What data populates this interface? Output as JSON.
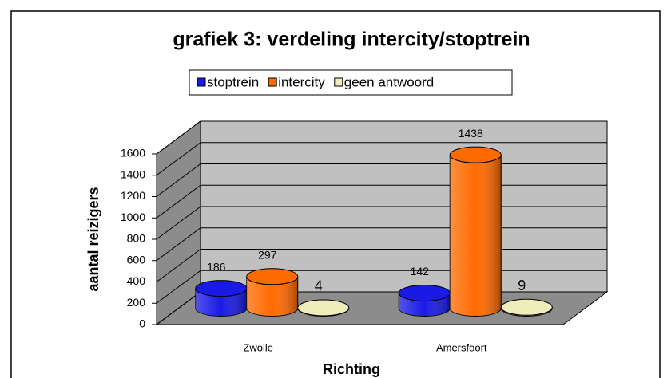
{
  "chart_data": {
    "type": "bar3d",
    "title": "grafiek 3: verdeling intercity/stoptrein",
    "x_label": "Richting",
    "y_label": "aantal reizigers",
    "categories": [
      "Zwolle",
      "Amersfoort"
    ],
    "series": [
      {
        "name": "stoptrein",
        "color": "#1a1ae6",
        "values": [
          186,
          142
        ]
      },
      {
        "name": "intercity",
        "color": "#ff6a00",
        "values": [
          297,
          1438
        ]
      },
      {
        "name": "geen antwoord",
        "color": "#eeeebb",
        "values": [
          4,
          9
        ]
      }
    ],
    "ylim": [
      0,
      1600
    ],
    "yticks": [
      0,
      200,
      400,
      600,
      800,
      1000,
      1200,
      1400,
      1600
    ],
    "grid": true,
    "legend": "top"
  }
}
